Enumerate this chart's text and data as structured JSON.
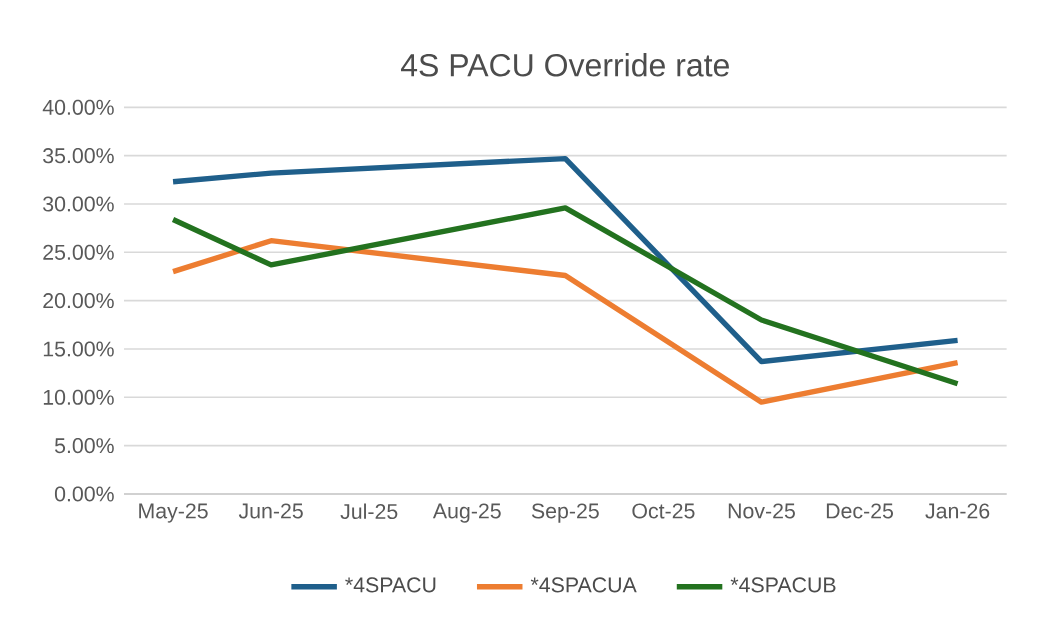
{
  "chart_data": {
    "type": "line",
    "title": "4S PACU  Override rate",
    "x": [
      "2025-05",
      "2025-06",
      "2025-09",
      "2025-11",
      "2026-01"
    ],
    "series": [
      {
        "name": "*4SPACU",
        "color": "#1f5f8b",
        "values": [
          32.3,
          33.2,
          34.7,
          13.7,
          15.9
        ]
      },
      {
        "name": "*4SPACUA",
        "color": "#ed7d31",
        "values": [
          23.0,
          26.2,
          22.6,
          9.5,
          13.6
        ]
      },
      {
        "name": "*4SPACUB",
        "color": "#23721f",
        "values": [
          28.4,
          23.7,
          29.6,
          18.0,
          11.4
        ]
      }
    ],
    "xlim": [
      "2025-04-16",
      "2026-01-16"
    ],
    "xticks": [
      {
        "value": "2025-05",
        "label": "May-25"
      },
      {
        "value": "2025-06",
        "label": "Jun-25"
      },
      {
        "value": "2025-07",
        "label": "Jul-25"
      },
      {
        "value": "2025-08",
        "label": "Aug-25"
      },
      {
        "value": "2025-09",
        "label": "Sep-25"
      },
      {
        "value": "2025-10",
        "label": "Oct-25"
      },
      {
        "value": "2025-11",
        "label": "Nov-25"
      },
      {
        "value": "2025-12",
        "label": "Dec-25"
      },
      {
        "value": "2026-01",
        "label": "Jan-26"
      }
    ],
    "ylim": [
      0,
      40
    ],
    "yticks": [
      {
        "value": 0,
        "label": "0.00%"
      },
      {
        "value": 5,
        "label": "5.00%"
      },
      {
        "value": 10,
        "label": "10.00%"
      },
      {
        "value": 15,
        "label": "15.00%"
      },
      {
        "value": 20,
        "label": "20.00%"
      },
      {
        "value": 25,
        "label": "25.00%"
      },
      {
        "value": 30,
        "label": "30.00%"
      },
      {
        "value": 35,
        "label": "35.00%"
      },
      {
        "value": 40,
        "label": "40.00%"
      }
    ],
    "grid": "y",
    "legend": "bottom",
    "marker": "none",
    "line_style": "solid"
  }
}
